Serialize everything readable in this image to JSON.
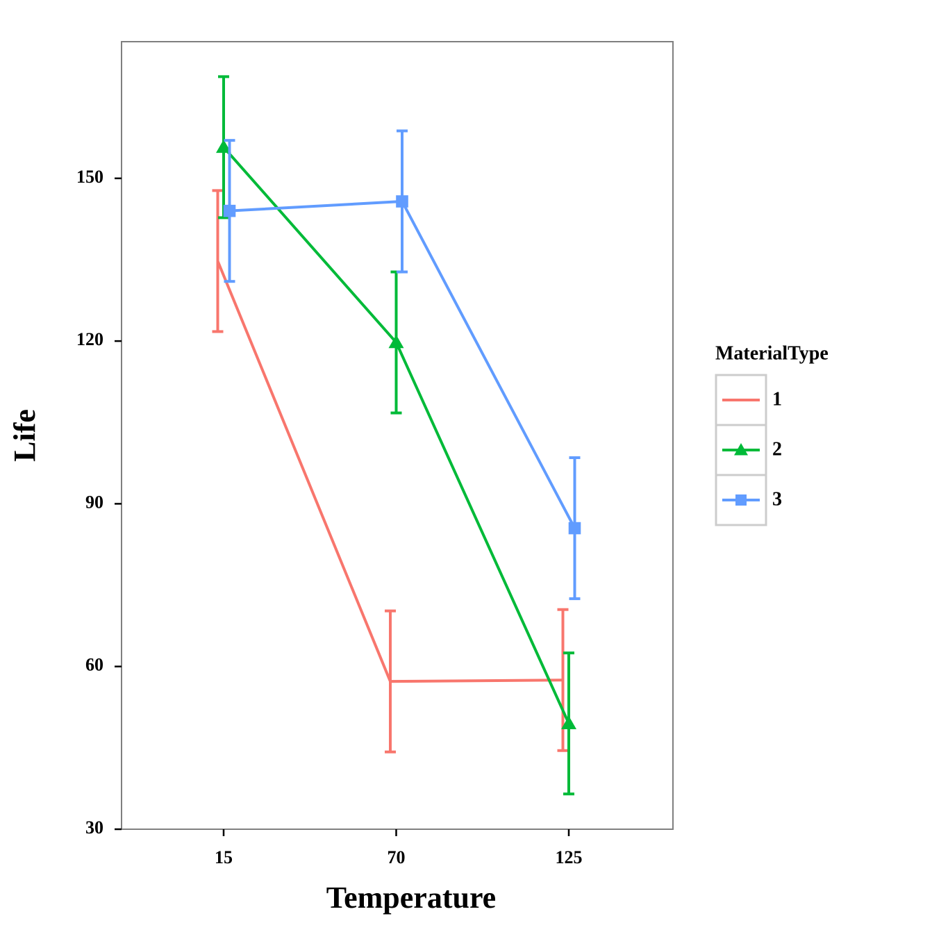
{
  "chart_data": {
    "type": "line",
    "x_label": "Temperature",
    "y_label": "Life",
    "categories": [
      "15",
      "70",
      "125"
    ],
    "ylim": [
      30,
      175.2
    ],
    "yticks": [
      30,
      60,
      90,
      120,
      150
    ],
    "legend_title": "MaterialType",
    "legend_position": "right",
    "series": [
      {
        "name": "1",
        "color": "#f8766d",
        "marker": "none",
        "values": [
          134.75,
          57.25,
          57.5
        ],
        "errors": [
          13,
          13,
          13
        ]
      },
      {
        "name": "2",
        "color": "#00ba38",
        "marker": "triangle",
        "values": [
          155.75,
          119.75,
          49.5
        ],
        "errors": [
          13,
          13,
          13
        ]
      },
      {
        "name": "3",
        "color": "#619cff",
        "marker": "square",
        "values": [
          144,
          145.75,
          85.5
        ],
        "errors": [
          13,
          13,
          13
        ]
      }
    ]
  }
}
